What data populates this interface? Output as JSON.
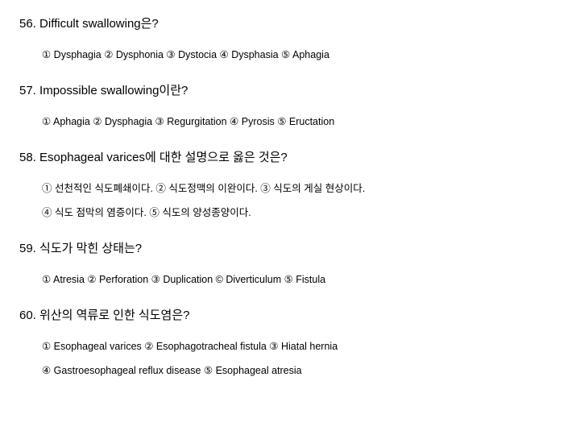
{
  "questions": [
    {
      "num": "56.",
      "title": "Difficult swallowing은?",
      "option_lines": [
        "① Dysphagia ② Dysphonia ③ Dystocia ④ Dysphasia ⑤ Aphagia"
      ]
    },
    {
      "num": "57.",
      "title": "Impossible swallowing이란?",
      "option_lines": [
        "① Aphagia ② Dysphagia ③ Regurgitation ④ Pyrosis ⑤ Eructation"
      ]
    },
    {
      "num": "58.",
      "title": "Esophageal varices에 대한 설명으로 옳은 것은?",
      "option_lines": [
        "① 선천적인 식도폐쇄이다. ② 식도정맥의 이완이다. ③ 식도의 게실 현상이다.",
        "④ 식도 점막의 염증이다. ⑤ 식도의 양성종양이다."
      ]
    },
    {
      "num": "59.",
      "title": "식도가 막힌 상태는?",
      "option_lines": [
        "① Atresia ② Perforation ③ Duplication © Diverticulum ⑤ Fistula"
      ]
    },
    {
      "num": "60.",
      "title": "위산의 역류로 인한 식도염은?",
      "option_lines": [
        "① Esophageal varices ② Esophagotracheal fistula ③ Hiatal hernia",
        "④ Gastroesophageal reflux disease ⑤ Esophageal atresia"
      ]
    }
  ]
}
